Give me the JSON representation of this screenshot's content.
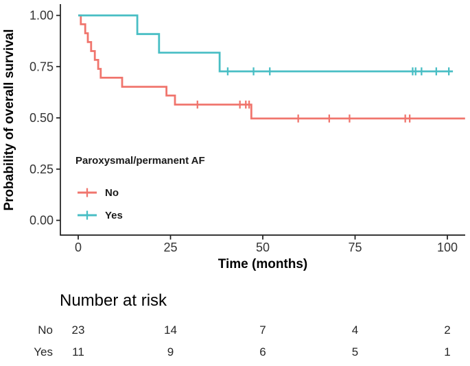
{
  "figure": {
    "background": "#ffffff"
  },
  "chart_data": {
    "type": "line",
    "subtype": "kaplan-meier-survival",
    "title": "",
    "xlabel": "Time (months)",
    "ylabel": "Probability of overall survival",
    "xlim": [
      0,
      105
    ],
    "ylim": [
      0,
      1
    ],
    "x_ticks": [
      0,
      25,
      50,
      75,
      100
    ],
    "y_ticks": [
      {
        "value": 1.0,
        "label": "1.00"
      },
      {
        "value": 0.75,
        "label": "0.75"
      },
      {
        "value": 0.5,
        "label": "0.50"
      },
      {
        "value": 0.25,
        "label": "0.25"
      },
      {
        "value": 0.0,
        "label": "0.00"
      }
    ],
    "grid": false,
    "legend": {
      "title": "Paroxysmal/permanent AF",
      "position": "inside-bottom-left",
      "entries": [
        "No",
        "Yes"
      ]
    },
    "series": [
      {
        "name": "No",
        "color": "#F0756D",
        "steps": [
          [
            0,
            1.0
          ],
          [
            0.7,
            0.957
          ],
          [
            1.9,
            0.913
          ],
          [
            2.6,
            0.87
          ],
          [
            3.5,
            0.826
          ],
          [
            4.5,
            0.783
          ],
          [
            5.4,
            0.739
          ],
          [
            6.1,
            0.696
          ],
          [
            11.9,
            0.652
          ],
          [
            23.9,
            0.609
          ],
          [
            26.2,
            0.565
          ],
          [
            46.9,
            0.497
          ]
        ],
        "end_time": 104.8,
        "censor_marks": [
          [
            32.3,
            0.565
          ],
          [
            43.8,
            0.565
          ],
          [
            45.4,
            0.565
          ],
          [
            46.3,
            0.565
          ],
          [
            59.6,
            0.497
          ],
          [
            68.0,
            0.497
          ],
          [
            73.5,
            0.497
          ],
          [
            88.6,
            0.497
          ],
          [
            89.8,
            0.497
          ]
        ]
      },
      {
        "name": "Yes",
        "color": "#48BEC4",
        "steps": [
          [
            0,
            1.0
          ],
          [
            16.0,
            0.909
          ],
          [
            21.9,
            0.818
          ],
          [
            38.3,
            0.727
          ]
        ],
        "end_time": 101.5,
        "censor_marks": [
          [
            40.5,
            0.727
          ],
          [
            47.5,
            0.727
          ],
          [
            51.9,
            0.727
          ],
          [
            90.6,
            0.727
          ],
          [
            91.4,
            0.727
          ],
          [
            93.0,
            0.727
          ],
          [
            97.0,
            0.727
          ],
          [
            100.4,
            0.727
          ]
        ]
      }
    ]
  },
  "risk_table": {
    "title": "Number at risk",
    "time_points": [
      0,
      25,
      50,
      75,
      100
    ],
    "rows": [
      {
        "label": "No",
        "color": "#F0756D",
        "counts": [
          23,
          14,
          7,
          4,
          2
        ]
      },
      {
        "label": "Yes",
        "color": "#48BEC4",
        "counts": [
          11,
          9,
          6,
          5,
          1
        ]
      }
    ]
  }
}
